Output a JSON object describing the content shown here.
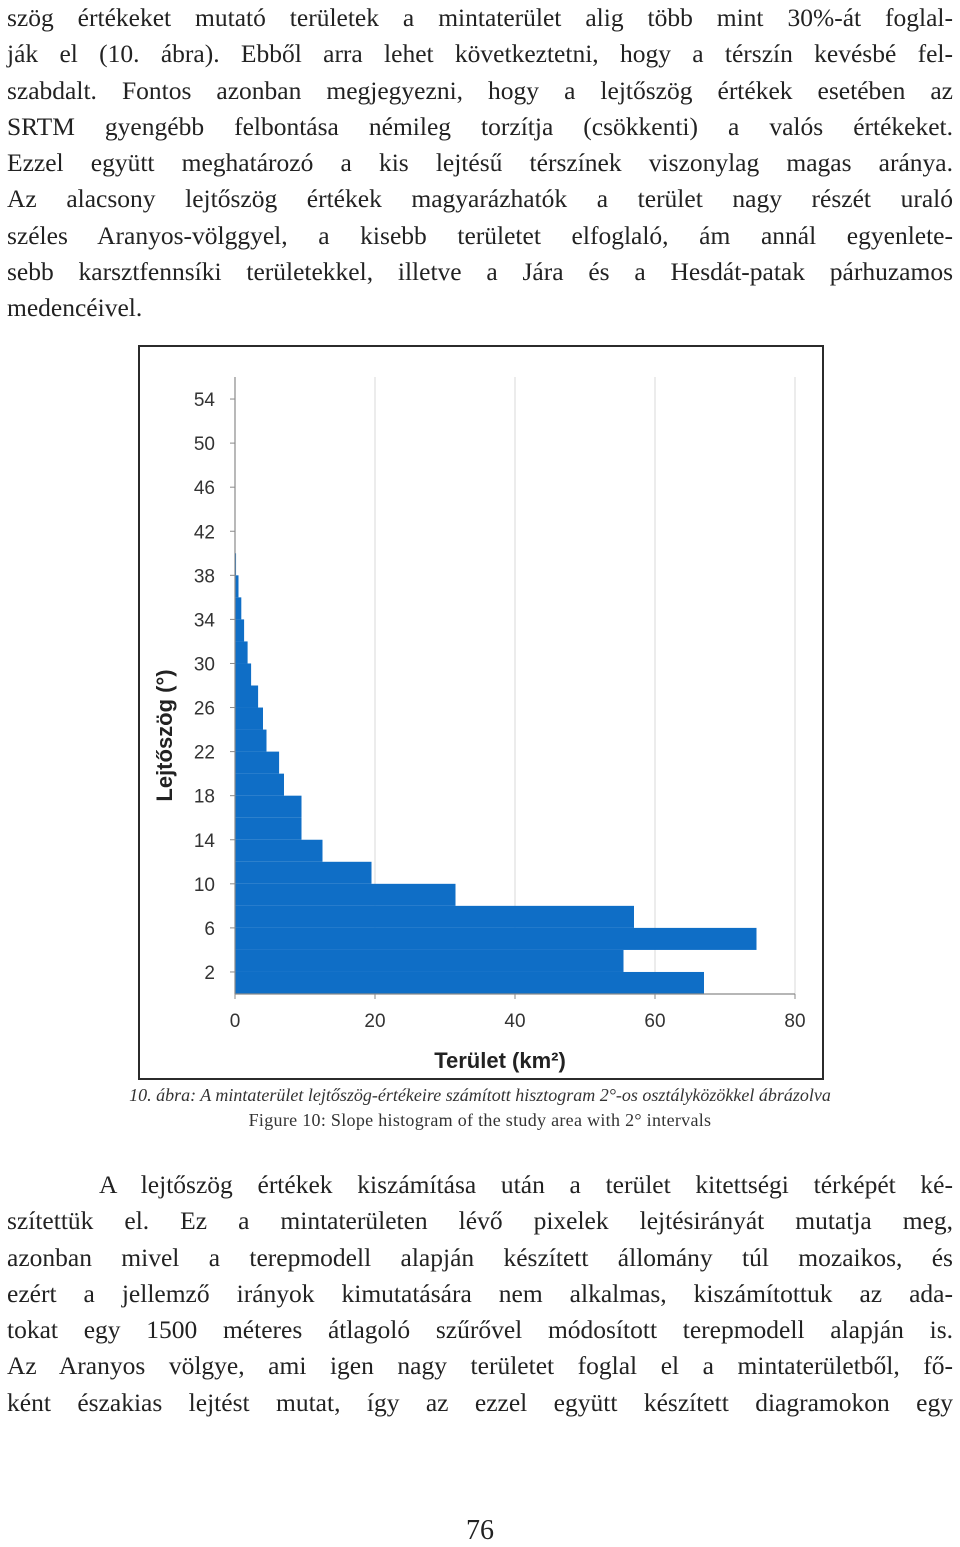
{
  "top_paragraph": [
    "szög értékeket mutató területek a mintaterület alig több mint 30%-át foglal-",
    "ják el (10. ábra). Ebből arra lehet következtetni, hogy a térszín kevésbé fel-",
    "szabdalt. Fontos azonban megjegyezni, hogy a lejtőszög értékek esetében az",
    "SRTM gyengébb felbontása némileg torzítja (csökkenti) a valós értékeket.",
    "Ezzel együtt meghatározó a kis lejtésű térszínek viszonylag magas aránya.",
    "Az alacsony lejtőszög értékek magyarázhatók a terület nagy részét uraló",
    "széles Aranyos-völggyel, a kisebb területet elfoglaló, ám annál egyenlete-",
    "sebb karsztfennsíki területekkel, illetve a Jára és a Hesdát-patak párhuzamos",
    "medencéivel."
  ],
  "figure": {
    "caption_hu_label": "10. ábra",
    "caption_hu_rest": ": A mintaterület lejtőszög-értékeire számított hisztogram 2°-os osztályközökkel ábrázolva",
    "caption_en": "Figure 10: Slope histogram of the study area with 2° intervals"
  },
  "chart_data": {
    "type": "bar",
    "orientation": "horizontal",
    "title": "",
    "xlabel": "Terület (km²)",
    "ylabel": "Lejtőszög (°)",
    "xlim": [
      0,
      80
    ],
    "x_ticks": [
      0,
      20,
      40,
      60,
      80
    ],
    "ylim": [
      0,
      56
    ],
    "y_ticks": [
      2,
      6,
      10,
      14,
      18,
      22,
      26,
      30,
      34,
      38,
      42,
      46,
      50,
      54
    ],
    "bar_color": "#0f6ec6",
    "grid": "vertical",
    "bins": [
      {
        "from": 0,
        "to": 2,
        "value": 67
      },
      {
        "from": 2,
        "to": 4,
        "value": 55.5
      },
      {
        "from": 4,
        "to": 6,
        "value": 74.5
      },
      {
        "from": 6,
        "to": 8,
        "value": 57
      },
      {
        "from": 8,
        "to": 10,
        "value": 31.5
      },
      {
        "from": 10,
        "to": 12,
        "value": 19.5
      },
      {
        "from": 12,
        "to": 14,
        "value": 12.5
      },
      {
        "from": 14,
        "to": 16,
        "value": 9.5
      },
      {
        "from": 16,
        "to": 18,
        "value": 9.5
      },
      {
        "from": 18,
        "to": 20,
        "value": 7
      },
      {
        "from": 20,
        "to": 22,
        "value": 6.3
      },
      {
        "from": 22,
        "to": 24,
        "value": 4.5
      },
      {
        "from": 24,
        "to": 26,
        "value": 4
      },
      {
        "from": 26,
        "to": 28,
        "value": 3.3
      },
      {
        "from": 28,
        "to": 30,
        "value": 2.3
      },
      {
        "from": 30,
        "to": 32,
        "value": 1.8
      },
      {
        "from": 32,
        "to": 34,
        "value": 1.3
      },
      {
        "from": 34,
        "to": 36,
        "value": 0.9
      },
      {
        "from": 36,
        "to": 38,
        "value": 0.5
      },
      {
        "from": 38,
        "to": 40,
        "value": 0.15
      }
    ]
  },
  "bottom_paragraph": [
    "A lejtőszög értékek kiszámítása után a terület kitettségi térképét ké-",
    "szítettük el. Ez a mintaterületen lévő pixelek lejtésirányát mutatja meg,",
    "azonban mivel a terepmodell alapján készített állomány túl mozaikos, és",
    "ezért a jellemző irányok kimutatására nem alkalmas, kiszámítottuk az ada-",
    "tokat egy 1500 méteres átlagoló szűrővel módosított terepmodell alapján is.",
    "Az Aranyos völgye, ami igen nagy területet foglal el a mintaterületből, fő-",
    "ként északias lejtést mutat, így az ezzel együtt készített diagramokon egy"
  ],
  "page_number": "76"
}
